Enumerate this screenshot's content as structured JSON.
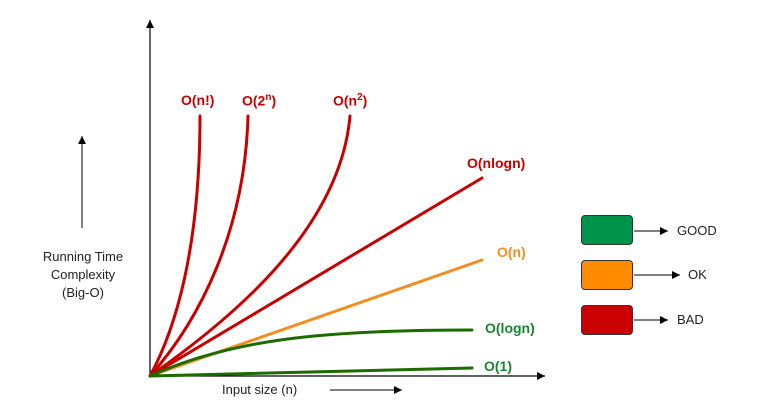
{
  "axes": {
    "x_label": "Input size (n)",
    "y_label_lines": [
      "Running Time",
      "Complexity",
      "(Big-O)"
    ]
  },
  "curves": [
    {
      "key": "factorial",
      "label": "O(n!)",
      "color": "#C80000"
    },
    {
      "key": "exponential",
      "label_base": "O(2",
      "label_sup": "n",
      "label_close": ")",
      "color": "#C80000"
    },
    {
      "key": "quadratic",
      "label_base": "O(n",
      "label_sup": "2",
      "label_close": ")",
      "color": "#C80000"
    },
    {
      "key": "nlogn",
      "label": "O(nlogn)",
      "color": "#C80000"
    },
    {
      "key": "linear",
      "label": "O(n)",
      "color": "#F68C1F"
    },
    {
      "key": "logn",
      "label": "O(logn)",
      "color": "#17872F"
    },
    {
      "key": "constant",
      "label": "O(1)",
      "color": "#17872F"
    }
  ],
  "legend": [
    {
      "key": "good",
      "label": "GOOD",
      "color": "#00934A"
    },
    {
      "key": "ok",
      "label": "OK",
      "color": "#FF8C00"
    },
    {
      "key": "bad",
      "label": "BAD",
      "color": "#CC0000"
    }
  ],
  "colors": {
    "axis": "#000000",
    "curve_dark_green": "#1B6B00"
  }
}
